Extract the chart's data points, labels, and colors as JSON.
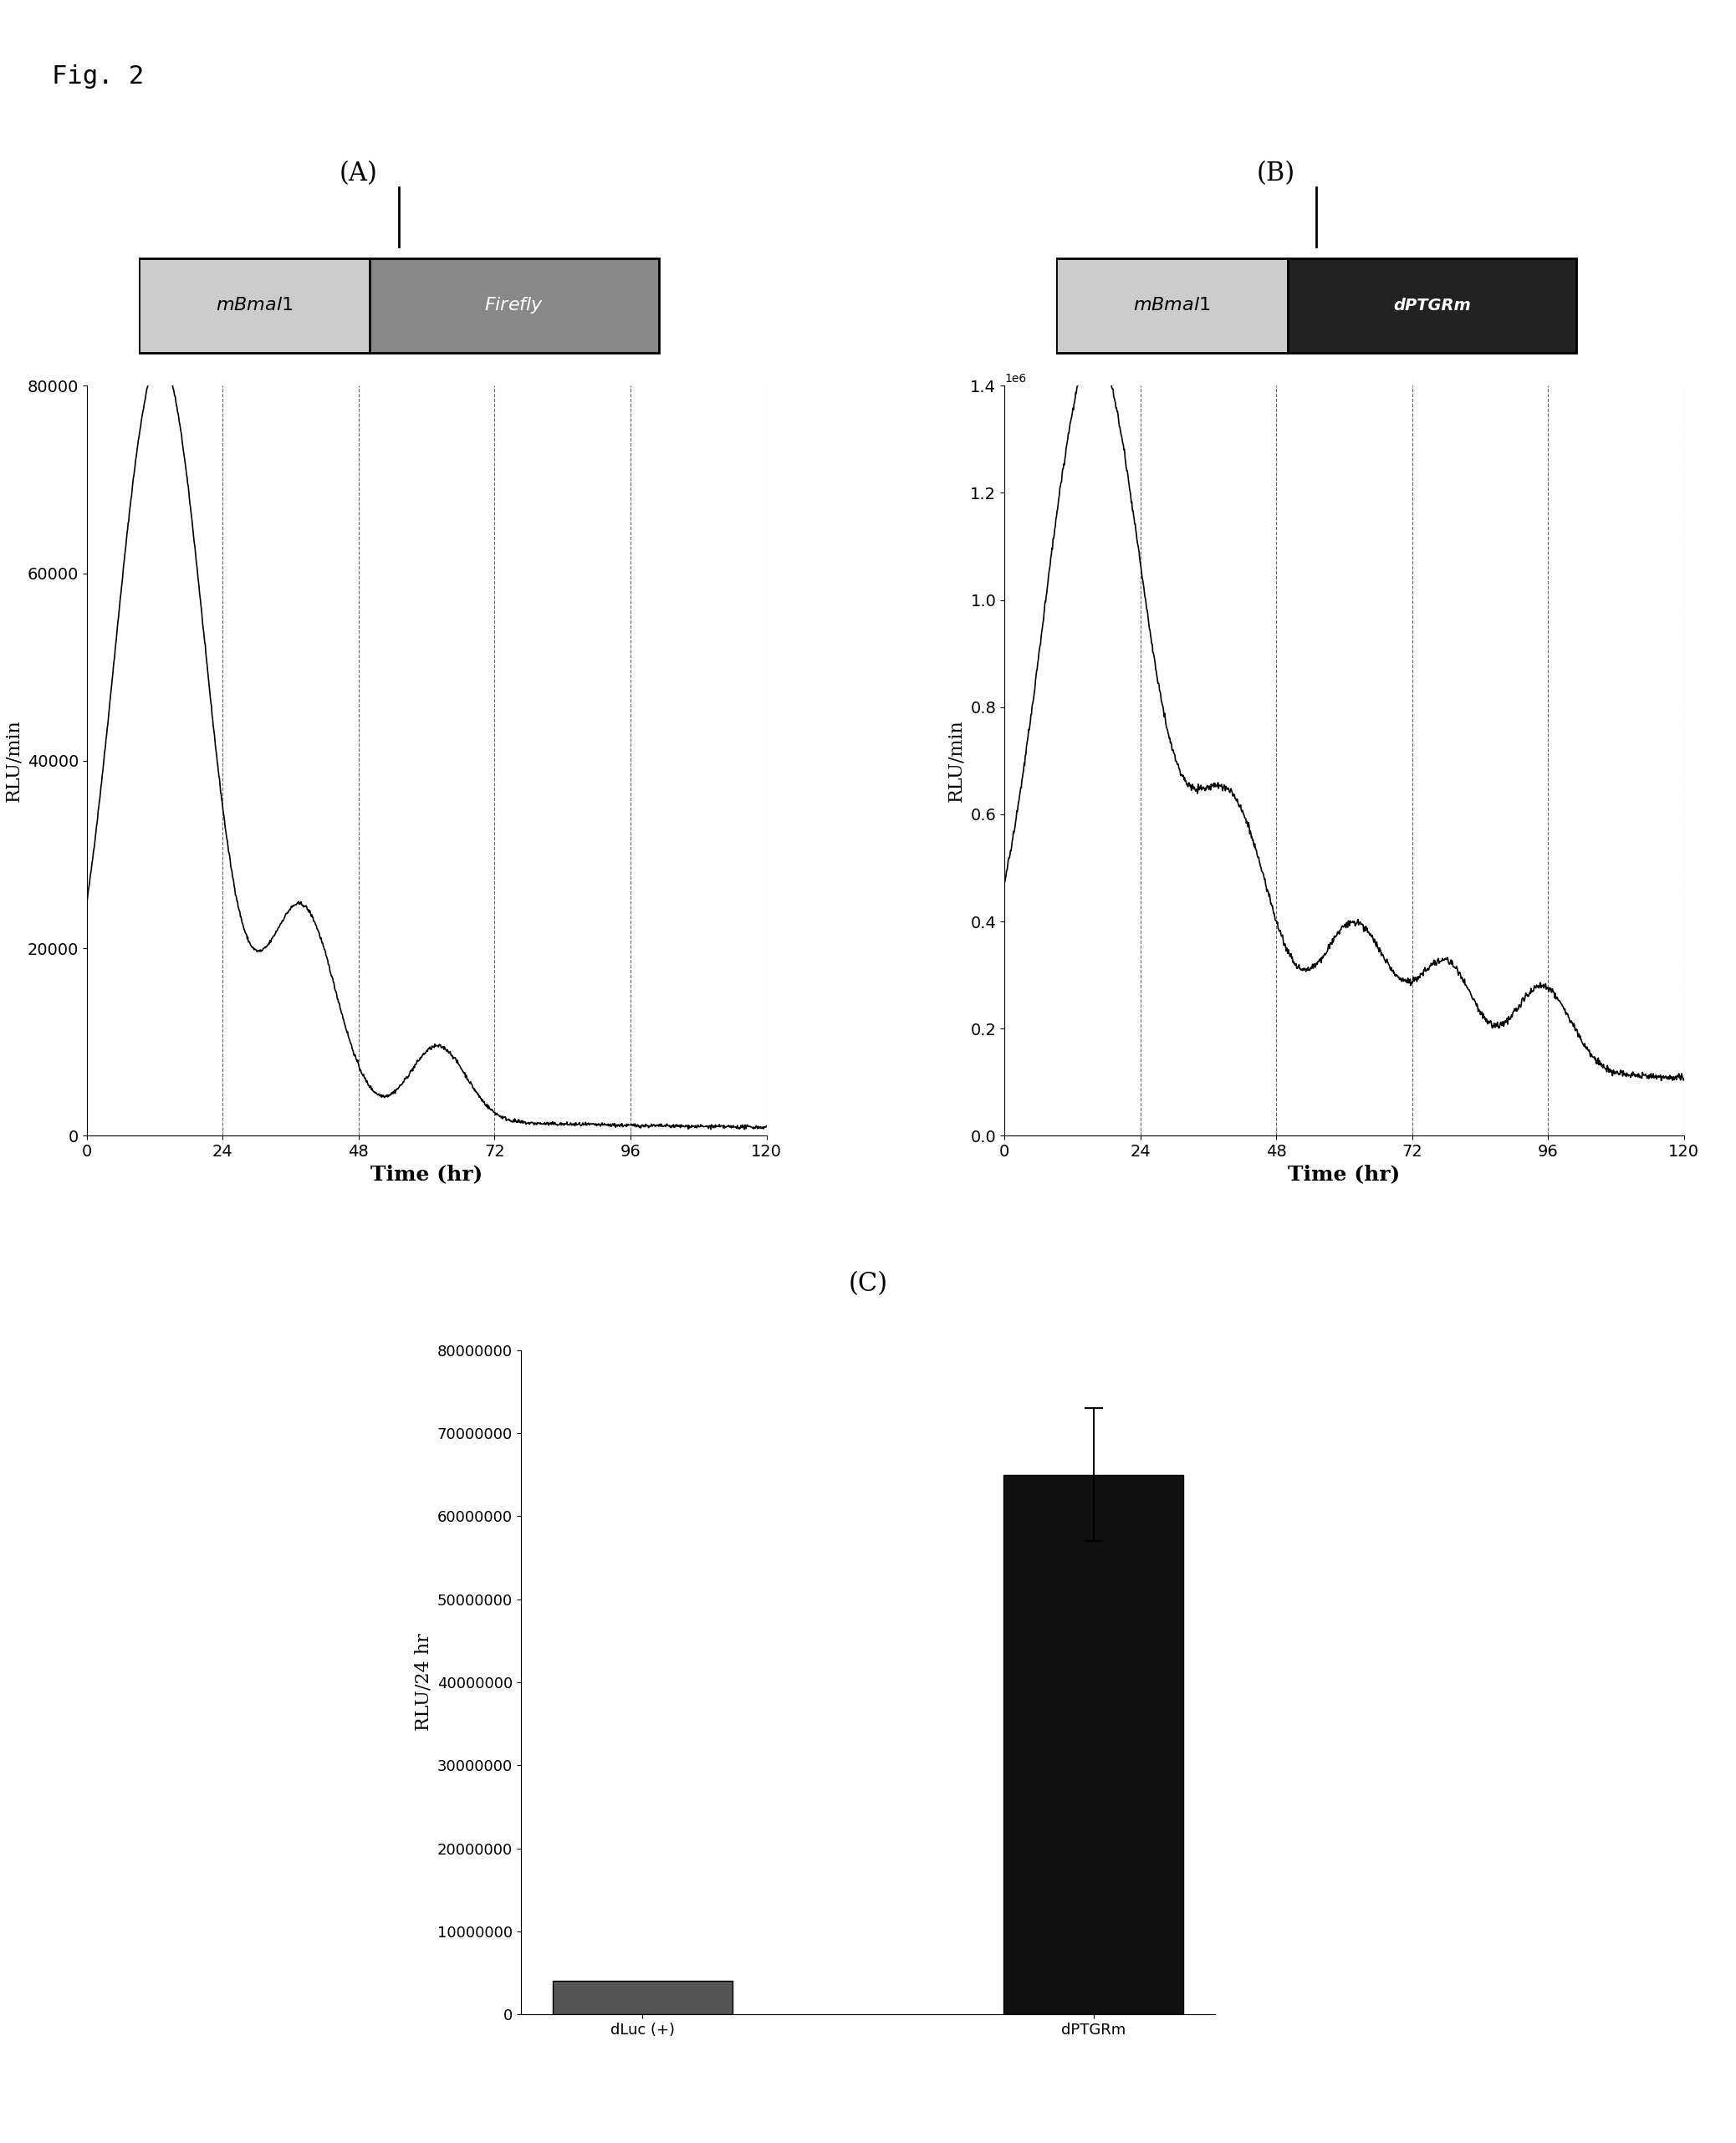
{
  "fig_label": "Fig. 2",
  "panel_A_label": "(A)",
  "panel_B_label": "(B)",
  "panel_C_label": "(C)",
  "panel_A_ylabel": "RLU/min",
  "panel_B_ylabel": "RLU/min",
  "panel_C_ylabel": "RLU/24 hr",
  "xlabel_A": "Time (hr)",
  "xlabel_B": "Time (hr)",
  "panel_A_ylim": [
    0,
    80000
  ],
  "panel_B_ylim": [
    0,
    1400000
  ],
  "panel_C_ylim": [
    0,
    80000000
  ],
  "panel_A_yticks": [
    0,
    20000,
    40000,
    60000,
    80000
  ],
  "panel_B_yticks": [
    0,
    200000,
    400000,
    600000,
    800000,
    1000000,
    1200000,
    1400000
  ],
  "panel_C_yticks": [
    0,
    10000000,
    20000000,
    30000000,
    40000000,
    50000000,
    60000000,
    70000000,
    80000000
  ],
  "xticks": [
    0,
    24,
    48,
    72,
    96,
    120
  ],
  "dashed_lines_x": [
    24,
    48,
    72,
    96,
    120
  ],
  "bar_categories": [
    "dLuc (+)",
    "dPTGRm"
  ],
  "bar_values": [
    4000000,
    65000000
  ],
  "bar_errors": [
    0,
    8000000
  ],
  "bar_colors": [
    "#555555",
    "#111111"
  ],
  "background_color": "#ffffff",
  "line_color": "#000000",
  "construct_A_text1": "mBmal1",
  "construct_A_text2": "Firefly",
  "construct_B_text1": "mBmal1",
  "construct_B_text2": "dPTGRm"
}
